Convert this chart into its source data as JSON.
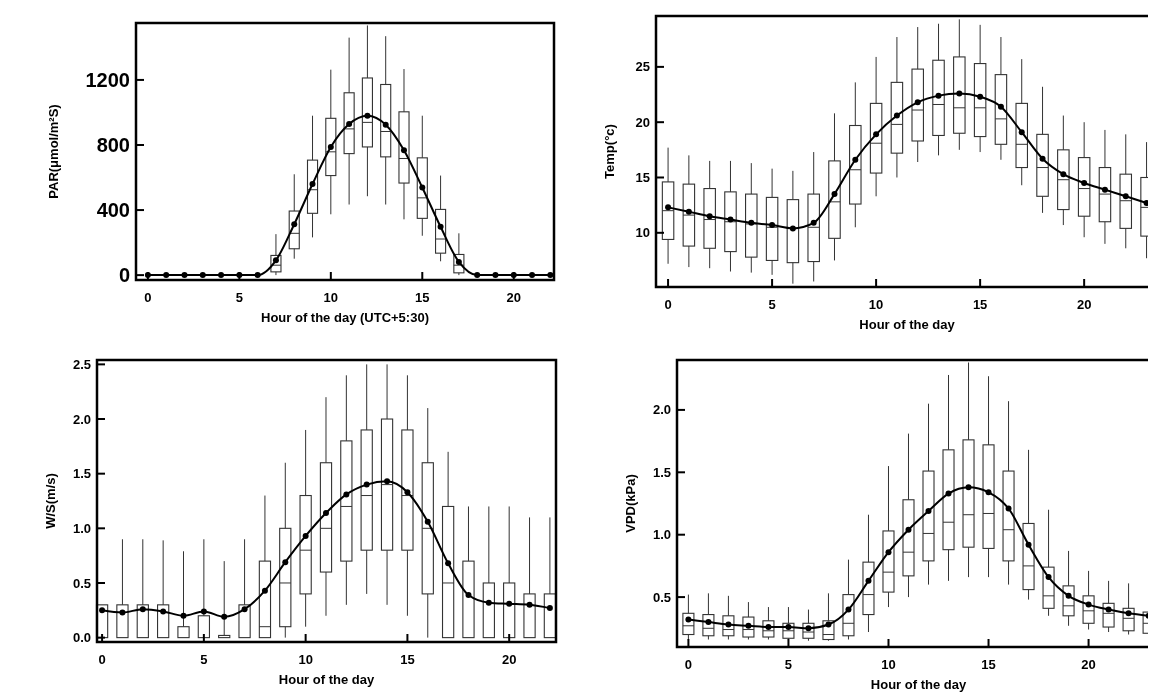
{
  "chart_data": [
    {
      "type": "box",
      "xlabel": "Hour of the day (UTC+5:30)",
      "ylabel": "PAR(μmol/m²S)",
      "xlim": [
        -0.65,
        22.2
      ],
      "ylim": [
        -30,
        1550
      ],
      "xticks": [
        0,
        5,
        10,
        15,
        20
      ],
      "yticks": [
        0,
        400,
        800,
        1200
      ],
      "marker": "circle",
      "series": [
        {
          "type": "box",
          "color": "#333333",
          "x": [
            7,
            8,
            9,
            10,
            11,
            12,
            13,
            14,
            15,
            16,
            17
          ],
          "boxes": [
            {
              "low": 0,
              "q1": 20,
              "median": 61,
              "q3": 121,
              "high": 252
            },
            {
              "low": 101,
              "q1": 162,
              "median": 257,
              "q3": 394,
              "high": 620
            },
            {
              "low": 232,
              "q1": 380,
              "median": 525,
              "q3": 707,
              "high": 980
            },
            {
              "low": 374,
              "q1": 612,
              "median": 758,
              "q3": 964,
              "high": 1263
            },
            {
              "low": 434,
              "q1": 747,
              "median": 899,
              "q3": 1121,
              "high": 1460
            },
            {
              "low": 485,
              "q1": 788,
              "median": 939,
              "q3": 1212,
              "high": 1535
            },
            {
              "low": 434,
              "q1": 727,
              "median": 883,
              "q3": 1172,
              "high": 1469
            },
            {
              "low": 343,
              "q1": 566,
              "median": 717,
              "q3": 1004,
              "high": 1267
            },
            {
              "low": 242,
              "q1": 349,
              "median": 475,
              "q3": 721,
              "high": 980
            },
            {
              "low": 85,
              "q1": 135,
              "median": 222,
              "q3": 404,
              "high": 612
            },
            {
              "low": 0,
              "q1": 14,
              "median": 61,
              "q3": 127,
              "high": 257
            }
          ]
        },
        {
          "type": "line",
          "color": "#000000",
          "x": [
            0,
            1,
            2,
            3,
            4,
            5,
            6,
            7,
            8,
            9,
            10,
            11,
            12,
            13,
            14,
            15,
            16,
            17,
            18,
            19,
            20,
            21,
            22
          ],
          "values": [
            0,
            0,
            0,
            0,
            0,
            0,
            0,
            91,
            313,
            560,
            788,
            929,
            980,
            925,
            768,
            539,
            297,
            81,
            0,
            0,
            0,
            0,
            0
          ]
        }
      ]
    },
    {
      "type": "box",
      "xlabel": "Hour of the day",
      "ylabel": "Temp(°c)",
      "xlim": [
        -0.58,
        23.55
      ],
      "ylim": [
        5.1,
        29.6
      ],
      "xticks": [
        0,
        5,
        10,
        15,
        20
      ],
      "yticks": [
        10,
        15,
        20,
        25
      ],
      "marker": "circle",
      "series": [
        {
          "type": "box",
          "color": "#333333",
          "x": [
            0,
            1,
            2,
            3,
            4,
            5,
            6,
            7,
            8,
            9,
            10,
            11,
            12,
            13,
            14,
            15,
            16,
            17,
            18,
            19,
            20,
            21,
            22,
            23
          ],
          "boxes": [
            {
              "low": 7.2,
              "q1": 9.4,
              "median": 12.0,
              "q3": 14.6,
              "high": 17.7
            },
            {
              "low": 6.9,
              "q1": 8.8,
              "median": 11.6,
              "q3": 14.4,
              "high": 17.0
            },
            {
              "low": 6.8,
              "q1": 8.6,
              "median": 11.2,
              "q3": 14.0,
              "high": 16.5
            },
            {
              "low": 6.5,
              "q1": 8.3,
              "median": 11.0,
              "q3": 13.7,
              "high": 16.5
            },
            {
              "low": 6.4,
              "q1": 7.8,
              "median": 10.8,
              "q3": 13.5,
              "high": 16.3
            },
            {
              "low": 6.2,
              "q1": 7.5,
              "median": 10.5,
              "q3": 13.2,
              "high": 15.8
            },
            {
              "low": 5.4,
              "q1": 7.3,
              "median": 10.4,
              "q3": 13.0,
              "high": 15.6
            },
            {
              "low": 5.6,
              "q1": 7.4,
              "median": 10.5,
              "q3": 13.5,
              "high": 17.3
            },
            {
              "low": 7.5,
              "q1": 9.5,
              "median": 12.8,
              "q3": 16.5,
              "high": 20.8
            },
            {
              "low": 10.5,
              "q1": 12.6,
              "median": 15.7,
              "q3": 19.7,
              "high": 23.6
            },
            {
              "low": 13.3,
              "q1": 15.4,
              "median": 18.1,
              "q3": 21.7,
              "high": 25.9
            },
            {
              "low": 15.0,
              "q1": 17.2,
              "median": 19.8,
              "q3": 23.6,
              "high": 27.7
            },
            {
              "low": 16.4,
              "q1": 18.3,
              "median": 21.1,
              "q3": 24.8,
              "high": 28.6
            },
            {
              "low": 17.0,
              "q1": 18.8,
              "median": 21.6,
              "q3": 25.6,
              "high": 28.9
            },
            {
              "low": 17.5,
              "q1": 19.0,
              "median": 21.3,
              "q3": 25.9,
              "high": 29.3
            },
            {
              "low": 17.3,
              "q1": 18.7,
              "median": 21.3,
              "q3": 25.3,
              "high": 28.8
            },
            {
              "low": 16.6,
              "q1": 18.0,
              "median": 20.3,
              "q3": 24.3,
              "high": 27.7
            },
            {
              "low": 14.3,
              "q1": 15.9,
              "median": 18.0,
              "q3": 21.7,
              "high": 25.7
            },
            {
              "low": 11.8,
              "q1": 13.3,
              "median": 15.9,
              "q3": 18.9,
              "high": 23.2
            },
            {
              "low": 10.7,
              "q1": 12.1,
              "median": 14.8,
              "q3": 17.5,
              "high": 20.6
            },
            {
              "low": 9.6,
              "q1": 11.5,
              "median": 14.0,
              "q3": 16.8,
              "high": 20.0
            },
            {
              "low": 9.0,
              "q1": 11.0,
              "median": 13.5,
              "q3": 15.9,
              "high": 19.3
            },
            {
              "low": 8.6,
              "q1": 10.4,
              "median": 12.9,
              "q3": 15.3,
              "high": 18.9
            },
            {
              "low": 7.7,
              "q1": 9.7,
              "median": 12.3,
              "q3": 15.0,
              "high": 18.2
            }
          ]
        },
        {
          "type": "line",
          "color": "#000000",
          "x": [
            0,
            1,
            2,
            3,
            4,
            5,
            6,
            7,
            8,
            9,
            10,
            11,
            12,
            13,
            14,
            15,
            16,
            17,
            18,
            19,
            20,
            21,
            22,
            23
          ],
          "values": [
            12.3,
            11.9,
            11.5,
            11.2,
            10.9,
            10.7,
            10.4,
            10.9,
            13.5,
            16.6,
            18.9,
            20.6,
            21.8,
            22.4,
            22.6,
            22.3,
            21.4,
            19.1,
            16.7,
            15.3,
            14.5,
            13.9,
            13.3,
            12.7
          ]
        }
      ]
    },
    {
      "type": "box",
      "xlabel": "Hour of the day",
      "ylabel": "W/S(m/s)",
      "xlim": [
        -0.25,
        22.3
      ],
      "ylim": [
        -0.04,
        2.54
      ],
      "xticks": [
        0,
        5,
        10,
        15,
        20
      ],
      "yticks": [
        {
          "value": 0,
          "label": "0.0"
        },
        0.5,
        {
          "value": 1,
          "label": "1.0"
        },
        1.5,
        {
          "value": 2,
          "label": "2.0"
        },
        2.5
      ],
      "marker": "circle",
      "series": [
        {
          "type": "box",
          "color": "#333333",
          "x": [
            0,
            1,
            2,
            3,
            4,
            5,
            6,
            7,
            8,
            9,
            10,
            11,
            12,
            13,
            14,
            15,
            16,
            17,
            18,
            19,
            20,
            21,
            22
          ],
          "boxes": [
            {
              "low": 0,
              "q1": 0,
              "median": 0,
              "q3": 0.3,
              "high": 0.3
            },
            {
              "low": 0,
              "q1": 0,
              "median": 0,
              "q3": 0.3,
              "high": 0.9
            },
            {
              "low": 0,
              "q1": 0,
              "median": 0,
              "q3": 0.3,
              "high": 0.9
            },
            {
              "low": 0,
              "q1": 0,
              "median": 0,
              "q3": 0.3,
              "high": 0.89
            },
            {
              "low": 0,
              "q1": 0,
              "median": 0,
              "q3": 0.1,
              "high": 0.79
            },
            {
              "low": 0,
              "q1": 0,
              "median": 0,
              "q3": 0.2,
              "high": 0.9
            },
            {
              "low": 0,
              "q1": 0,
              "median": 0,
              "q3": 0.02,
              "high": 0.7
            },
            {
              "low": 0,
              "q1": 0,
              "median": 0,
              "q3": 0.3,
              "high": 0.9
            },
            {
              "low": 0,
              "q1": 0,
              "median": 0.1,
              "q3": 0.7,
              "high": 1.3
            },
            {
              "low": 0,
              "q1": 0.1,
              "median": 0.5,
              "q3": 1.0,
              "high": 1.6
            },
            {
              "low": 0.1,
              "q1": 0.4,
              "median": 0.8,
              "q3": 1.3,
              "high": 1.9
            },
            {
              "low": 0.2,
              "q1": 0.6,
              "median": 1.0,
              "q3": 1.6,
              "high": 2.2
            },
            {
              "low": 0.3,
              "q1": 0.7,
              "median": 1.2,
              "q3": 1.8,
              "high": 2.4
            },
            {
              "low": 0.4,
              "q1": 0.8,
              "median": 1.3,
              "q3": 1.9,
              "high": 2.5
            },
            {
              "low": 0.3,
              "q1": 0.8,
              "median": 1.4,
              "q3": 2.0,
              "high": 2.5
            },
            {
              "low": 0.2,
              "q1": 0.8,
              "median": 1.3,
              "q3": 1.9,
              "high": 2.4
            },
            {
              "low": 0,
              "q1": 0.4,
              "median": 1.0,
              "q3": 1.6,
              "high": 2.1
            },
            {
              "low": 0,
              "q1": 0,
              "median": 0.5,
              "q3": 1.2,
              "high": 1.7
            },
            {
              "low": 0,
              "q1": 0,
              "median": 0,
              "q3": 0.7,
              "high": 1.2
            },
            {
              "low": 0,
              "q1": 0,
              "median": 0,
              "q3": 0.5,
              "high": 1.2
            },
            {
              "low": 0,
              "q1": 0,
              "median": 0,
              "q3": 0.5,
              "high": 1.2
            },
            {
              "low": 0,
              "q1": 0,
              "median": 0,
              "q3": 0.4,
              "high": 1.1
            },
            {
              "low": 0,
              "q1": 0,
              "median": 0,
              "q3": 0.4,
              "high": 1.1
            }
          ]
        },
        {
          "type": "line",
          "color": "#000000",
          "x": [
            0,
            1,
            2,
            3,
            4,
            5,
            6,
            7,
            8,
            9,
            10,
            11,
            12,
            13,
            14,
            15,
            16,
            17,
            18,
            19,
            20,
            21,
            22
          ],
          "values": [
            0.25,
            0.23,
            0.26,
            0.24,
            0.2,
            0.24,
            0.19,
            0.26,
            0.43,
            0.69,
            0.93,
            1.14,
            1.31,
            1.4,
            1.43,
            1.33,
            1.06,
            0.68,
            0.39,
            0.32,
            0.31,
            0.3,
            0.27
          ]
        }
      ]
    },
    {
      "type": "box",
      "xlabel": "Hour of the day",
      "ylabel": "VPD(kPa)",
      "xlim": [
        -0.57,
        23.57
      ],
      "ylim": [
        0.1,
        2.4
      ],
      "xticks": [
        0,
        5,
        10,
        15,
        20
      ],
      "yticks": [
        0.5,
        {
          "value": 1,
          "label": "1.0"
        },
        1.5,
        {
          "value": 2,
          "label": "2.0"
        }
      ],
      "marker": "circle",
      "series": [
        {
          "type": "box",
          "color": "#333333",
          "x": [
            0,
            1,
            2,
            3,
            4,
            5,
            6,
            7,
            8,
            9,
            10,
            11,
            12,
            13,
            14,
            15,
            16,
            17,
            18,
            19,
            20,
            21,
            22,
            23
          ],
          "boxes": [
            {
              "low": 0.15,
              "q1": 0.2,
              "median": 0.27,
              "q3": 0.37,
              "high": 0.52
            },
            {
              "low": 0.16,
              "q1": 0.19,
              "median": 0.25,
              "q3": 0.36,
              "high": 0.53
            },
            {
              "low": 0.16,
              "q1": 0.19,
              "median": 0.24,
              "q3": 0.35,
              "high": 0.51
            },
            {
              "low": 0.16,
              "q1": 0.18,
              "median": 0.24,
              "q3": 0.34,
              "high": 0.46
            },
            {
              "low": 0.16,
              "q1": 0.18,
              "median": 0.23,
              "q3": 0.31,
              "high": 0.42
            },
            {
              "low": 0.15,
              "q1": 0.17,
              "median": 0.23,
              "q3": 0.29,
              "high": 0.42
            },
            {
              "low": 0.15,
              "q1": 0.17,
              "median": 0.22,
              "q3": 0.29,
              "high": 0.4
            },
            {
              "low": 0.15,
              "q1": 0.16,
              "median": 0.2,
              "q3": 0.31,
              "high": 0.53
            },
            {
              "low": 0.16,
              "q1": 0.19,
              "median": 0.29,
              "q3": 0.52,
              "high": 0.8
            },
            {
              "low": 0.22,
              "q1": 0.36,
              "median": 0.52,
              "q3": 0.78,
              "high": 1.16
            },
            {
              "low": 0.42,
              "q1": 0.54,
              "median": 0.7,
              "q3": 1.03,
              "high": 1.55
            },
            {
              "low": 0.5,
              "q1": 0.67,
              "median": 0.86,
              "q3": 1.28,
              "high": 1.81
            },
            {
              "low": 0.6,
              "q1": 0.79,
              "median": 1.01,
              "q3": 1.51,
              "high": 2.05
            },
            {
              "low": 0.63,
              "q1": 0.88,
              "median": 1.1,
              "q3": 1.68,
              "high": 2.28
            },
            {
              "low": 0.66,
              "q1": 0.9,
              "median": 1.16,
              "q3": 1.76,
              "high": 2.38
            },
            {
              "low": 0.66,
              "q1": 0.89,
              "median": 1.17,
              "q3": 1.72,
              "high": 2.27
            },
            {
              "low": 0.6,
              "q1": 0.79,
              "median": 1.04,
              "q3": 1.51,
              "high": 2.07
            },
            {
              "low": 0.48,
              "q1": 0.56,
              "median": 0.75,
              "q3": 1.09,
              "high": 1.68
            },
            {
              "low": 0.35,
              "q1": 0.41,
              "median": 0.51,
              "q3": 0.74,
              "high": 1.2
            },
            {
              "low": 0.27,
              "q1": 0.35,
              "median": 0.43,
              "q3": 0.59,
              "high": 0.87
            },
            {
              "low": 0.24,
              "q1": 0.29,
              "median": 0.39,
              "q3": 0.51,
              "high": 0.71
            },
            {
              "low": 0.22,
              "q1": 0.26,
              "median": 0.37,
              "q3": 0.45,
              "high": 0.63
            },
            {
              "low": 0.2,
              "q1": 0.23,
              "median": 0.33,
              "q3": 0.41,
              "high": 0.61
            },
            {
              "low": 0.18,
              "q1": 0.21,
              "median": 0.29,
              "q3": 0.38,
              "high": 0.57
            }
          ]
        },
        {
          "type": "line",
          "color": "#000000",
          "x": [
            0,
            1,
            2,
            3,
            4,
            5,
            6,
            7,
            8,
            9,
            10,
            11,
            12,
            13,
            14,
            15,
            16,
            17,
            18,
            19,
            20,
            21,
            22,
            23
          ],
          "values": [
            0.32,
            0.3,
            0.28,
            0.27,
            0.26,
            0.26,
            0.25,
            0.28,
            0.4,
            0.63,
            0.86,
            1.04,
            1.19,
            1.33,
            1.38,
            1.34,
            1.21,
            0.92,
            0.66,
            0.51,
            0.44,
            0.4,
            0.37,
            0.35
          ]
        }
      ]
    }
  ]
}
